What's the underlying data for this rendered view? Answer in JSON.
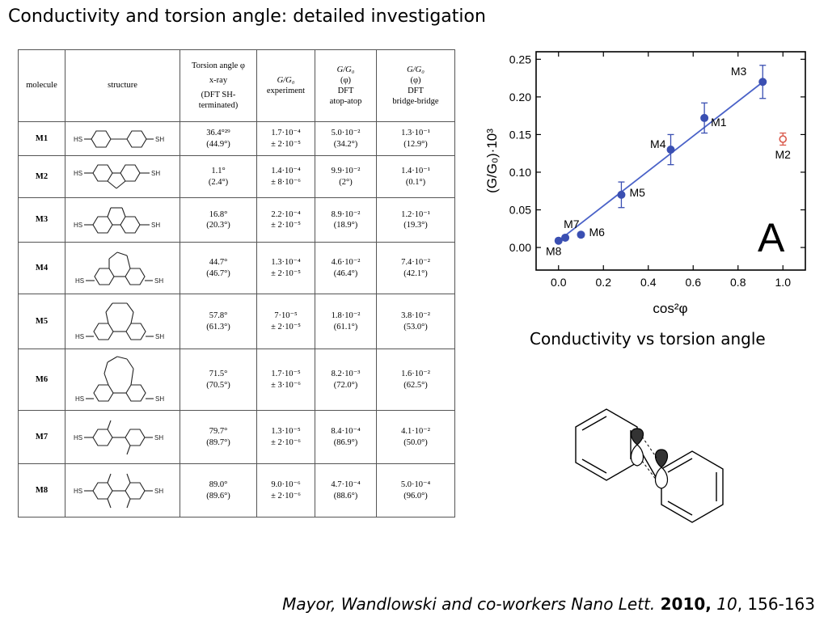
{
  "slide": {
    "title": "Conductivity and torsion angle: detailed investigation",
    "chart_caption": "Conductivity vs torsion angle",
    "citation": {
      "authors_journal": "Mayor, Wandlowski and co-workers Nano Lett.",
      "year": "2010,",
      "volume": "10",
      "pages": ", 156-163"
    }
  },
  "table": {
    "headers": {
      "molecule": "molecule",
      "structure": "structure",
      "torsion": [
        "Torsion angle φ",
        "x-ray",
        "(DFT SH-",
        "terminated)"
      ],
      "g_exp": [
        "G/G₀",
        "experiment"
      ],
      "g_atop": [
        "G/G₀",
        "(φ)",
        "DFT",
        "atop-atop"
      ],
      "g_bridge": [
        "G/G₀",
        "(φ)",
        "DFT",
        "bridge-bridge"
      ]
    },
    "rows": [
      {
        "molecule": "M1",
        "torsion_xray": "36.4°²⁹",
        "torsion_dft": "(44.9°)",
        "g_exp": "1.7·10⁻⁴",
        "g_exp_err": "± 2·10⁻⁵",
        "g_atop": "5.0·10⁻²",
        "atop_angle": "(34.2°)",
        "g_bridge": "1.3·10⁻¹",
        "bridge_angle": "(12.9°)"
      },
      {
        "molecule": "M2",
        "torsion_xray": "1.1°",
        "torsion_dft": "(2.4°)",
        "g_exp": "1.4·10⁻⁴",
        "g_exp_err": "± 8·10⁻⁶",
        "g_atop": "9.9·10⁻²",
        "atop_angle": "(2°)",
        "g_bridge": "1.4·10⁻¹",
        "bridge_angle": "(0.1°)"
      },
      {
        "molecule": "M3",
        "torsion_xray": "16.8°",
        "torsion_dft": "(20.3°)",
        "g_exp": "2.2·10⁻⁴",
        "g_exp_err": "± 2·10⁻⁵",
        "g_atop": "8.9·10⁻²",
        "atop_angle": "(18.9°)",
        "g_bridge": "1.2·10⁻¹",
        "bridge_angle": "(19.3°)"
      },
      {
        "molecule": "M4",
        "torsion_xray": "44.7°",
        "torsion_dft": "(46.7°)",
        "g_exp": "1.3·10⁻⁴",
        "g_exp_err": "± 2·10⁻⁵",
        "g_atop": "4.6·10⁻²",
        "atop_angle": "(46.4°)",
        "g_bridge": "7.4·10⁻²",
        "bridge_angle": "(42.1°)"
      },
      {
        "molecule": "M5",
        "torsion_xray": "57.8°",
        "torsion_dft": "(61.3°)",
        "g_exp": "7·10⁻⁵",
        "g_exp_err": "± 2·10⁻⁵",
        "g_atop": "1.8·10⁻²",
        "atop_angle": "(61.1°)",
        "g_bridge": "3.8·10⁻²",
        "bridge_angle": "(53.0°)"
      },
      {
        "molecule": "M6",
        "torsion_xray": "71.5°",
        "torsion_dft": "(70.5°)",
        "g_exp": "1.7·10⁻⁵",
        "g_exp_err": "± 3·10⁻⁶",
        "g_atop": "8.2·10⁻³",
        "atop_angle": "(72.0°)",
        "g_bridge": "1.6·10⁻²",
        "bridge_angle": "(62.5°)"
      },
      {
        "molecule": "M7",
        "torsion_xray": "79.7°",
        "torsion_dft": "(89.7°)",
        "g_exp": "1.3·10⁻⁵",
        "g_exp_err": "± 2·10⁻⁶",
        "g_atop": "8.4·10⁻⁴",
        "atop_angle": "(86.9°)",
        "g_bridge": "4.1·10⁻²",
        "bridge_angle": "(50.0°)"
      },
      {
        "molecule": "M8",
        "torsion_xray": "89.0°",
        "torsion_dft": "(89.6°)",
        "g_exp": "9.0·10⁻⁶",
        "g_exp_err": "± 2·10⁻⁶",
        "g_atop": "4.7·10⁻⁴",
        "atop_angle": "(88.6°)",
        "g_bridge": "5.0·10⁻⁴",
        "bridge_angle": "(96.0°)"
      }
    ],
    "structure_label": "HS",
    "structure_label_right": "SH"
  },
  "chart_data": {
    "type": "scatter",
    "xlabel": "cos²φ",
    "ylabel": "(G/G₀)·10³",
    "xlim": [
      -0.1,
      1.1
    ],
    "ylim": [
      -0.03,
      0.26
    ],
    "xticks": [
      0.0,
      0.2,
      0.4,
      0.6,
      0.8,
      1.0
    ],
    "yticks": [
      0.0,
      0.05,
      0.1,
      0.15,
      0.2,
      0.25
    ],
    "xtick_labels": [
      "0.0",
      "0.2",
      "0.4",
      "0.6",
      "0.8",
      "1.0"
    ],
    "ytick_labels": [
      "0.00",
      "0.05",
      "0.10",
      "0.15",
      "0.20",
      "0.25"
    ],
    "panel_label": "A",
    "grid": false,
    "series": [
      {
        "color": "#3a4fb2",
        "points": [
          {
            "label": "M3",
            "x": 0.91,
            "y": 0.22,
            "err": 0.022
          },
          {
            "label": "M1",
            "x": 0.65,
            "y": 0.172,
            "err": 0.02
          },
          {
            "label": "M4",
            "x": 0.5,
            "y": 0.13,
            "err": 0.02
          },
          {
            "label": "M5",
            "x": 0.28,
            "y": 0.07,
            "err": 0.017
          },
          {
            "label": "M6",
            "x": 0.1,
            "y": 0.017,
            "err": 0.003
          },
          {
            "label": "M7",
            "x": 0.03,
            "y": 0.013,
            "err": 0.002
          },
          {
            "label": "M8",
            "x": 0.0,
            "y": 0.009,
            "err": 0.002
          }
        ]
      },
      {
        "color": "#d9584a",
        "marker": "open-circle",
        "points": [
          {
            "label": "M2",
            "x": 1.0,
            "y": 0.144,
            "err": 0.008
          }
        ]
      }
    ],
    "fit_line": {
      "x": [
        0.0,
        0.92
      ],
      "y": [
        0.009,
        0.222
      ],
      "color": "#4a62c8"
    }
  }
}
